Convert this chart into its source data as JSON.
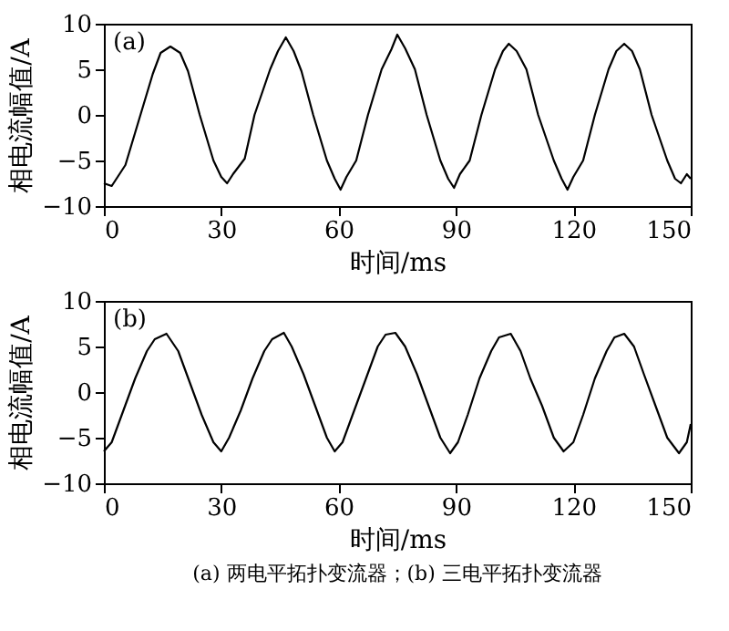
{
  "chart_data": [
    {
      "type": "line",
      "xlabel": "时间/ms",
      "ylabel": "相电流幅值/A",
      "xlim": [
        0,
        150
      ],
      "xticks": [
        0,
        30,
        60,
        90,
        120,
        150
      ],
      "ylim": [
        -10,
        10
      ],
      "yticks": [
        -10,
        -5,
        0,
        5,
        10
      ],
      "grid": false,
      "marker": "none",
      "line_style": "solid",
      "annotations": [
        "(a)"
      ],
      "series": [
        {
          "color": "#000000",
          "x": [
            0,
            2,
            5.5,
            9,
            12.5,
            14.5,
            17,
            19.5,
            21.5,
            24.5,
            28,
            30,
            31.5,
            33,
            36,
            38.5,
            42.5,
            44.5,
            46.5,
            48.5,
            50.5,
            53.5,
            57,
            59,
            60.5,
            62,
            64.5,
            67.5,
            71,
            73.5,
            75,
            77,
            79.5,
            82.5,
            86,
            88,
            89.5,
            91,
            93.5,
            96.5,
            100,
            102,
            103.5,
            105.5,
            108,
            111,
            115,
            117,
            118.5,
            120,
            122.5,
            125.5,
            129,
            131,
            133,
            135,
            137,
            140,
            144,
            146,
            147.5,
            149,
            150
          ],
          "values": [
            -7.5,
            -7.8,
            -5.5,
            -0.5,
            4.5,
            6.8,
            7.5,
            6.8,
            4.8,
            0,
            -5,
            -6.8,
            -7.5,
            -6.5,
            -4.8,
            0,
            5,
            7,
            8.5,
            7,
            4.8,
            0,
            -5,
            -7,
            -8.2,
            -6.8,
            -5,
            0,
            5,
            7.2,
            8.8,
            7.3,
            5,
            0,
            -5,
            -7,
            -8,
            -6.5,
            -5,
            0,
            5,
            7,
            7.8,
            7,
            5,
            0,
            -5,
            -7,
            -8.2,
            -6.8,
            -5,
            0,
            5,
            7,
            7.8,
            7,
            5,
            0,
            -5,
            -7,
            -7.5,
            -6.5,
            -7
          ]
        }
      ]
    },
    {
      "type": "line",
      "xlabel": "时间/ms",
      "ylabel": "相电流幅值/A",
      "xlim": [
        0,
        150
      ],
      "xticks": [
        0,
        30,
        60,
        90,
        120,
        150
      ],
      "ylim": [
        -10,
        10
      ],
      "yticks": [
        -10,
        -5,
        0,
        5,
        10
      ],
      "grid": false,
      "marker": "none",
      "line_style": "solid",
      "annotations": [
        "(b)",
        "(a) 两电平拓扑变流器；(b) 三电平拓扑变流器"
      ],
      "series": [
        {
          "color": "#000000",
          "x": [
            0,
            2,
            5,
            8,
            11,
            13,
            16,
            19,
            22,
            25,
            28,
            30,
            32,
            35,
            38,
            41,
            43,
            46,
            48,
            51,
            54,
            57,
            59,
            61,
            64,
            67,
            70,
            72,
            74.5,
            77,
            80,
            83,
            86,
            88.5,
            90.5,
            93,
            96,
            99,
            101,
            104,
            106.5,
            109,
            112,
            115,
            117.5,
            120,
            122.5,
            125.5,
            128.5,
            130.5,
            133,
            135.5,
            138,
            141,
            144,
            147,
            149,
            150
          ],
          "values": [
            -6.5,
            -5.5,
            -2,
            1.5,
            4.5,
            5.8,
            6.4,
            4.5,
            1,
            -2.5,
            -5.5,
            -6.5,
            -5,
            -2,
            1.5,
            4.5,
            5.8,
            6.5,
            5,
            2,
            -1.5,
            -5,
            -6.5,
            -5.5,
            -2,
            1.5,
            5,
            6.3,
            6.5,
            5,
            2,
            -1.5,
            -5,
            -6.7,
            -5.5,
            -2.5,
            1.5,
            4.5,
            6,
            6.4,
            4.5,
            1.5,
            -1.5,
            -5,
            -6.5,
            -5.5,
            -2.5,
            1.5,
            4.5,
            6,
            6.4,
            5,
            2,
            -1.5,
            -5,
            -6.7,
            -5.5,
            -3.5
          ]
        }
      ]
    }
  ]
}
